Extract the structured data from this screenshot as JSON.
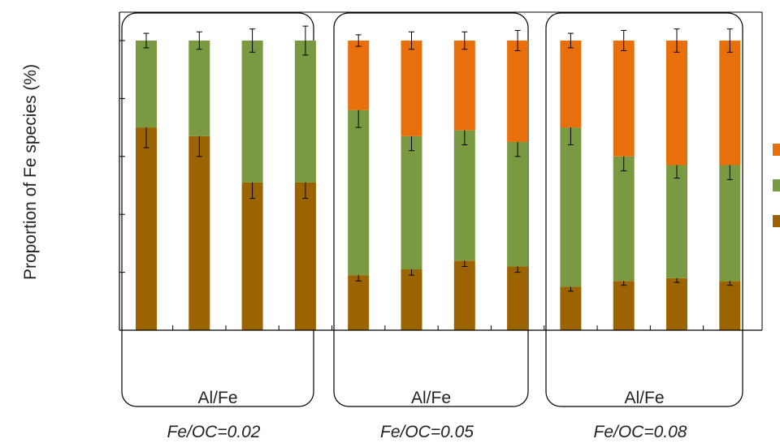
{
  "chart_data": {
    "type": "bar",
    "stacked": true,
    "ylabel": "Proportion of Fe species (%)",
    "ylim": [
      0,
      100
    ],
    "ytick_values": [
      0,
      20,
      40,
      60,
      80,
      100
    ],
    "grid": false,
    "legend_position": "right",
    "legend_label_text_visible": false,
    "series": [
      {
        "key": "bottom",
        "color": "#9b6400",
        "values": [
          70,
          67,
          51,
          51,
          19,
          21,
          24,
          22,
          15,
          17,
          18,
          17
        ],
        "errors": [
          7,
          7,
          5.5,
          5.5,
          2,
          2,
          2,
          2,
          1.5,
          1.5,
          1.5,
          1.5
        ]
      },
      {
        "key": "middle",
        "color": "#7a9a41",
        "values": [
          30,
          33,
          49,
          49,
          57,
          46,
          45,
          43,
          55,
          43,
          39,
          40
        ],
        "errors": [
          2.5,
          3,
          4,
          5,
          6,
          5,
          5,
          5,
          6,
          5,
          4.5,
          5
        ]
      },
      {
        "key": "top",
        "color": "#e8700c",
        "values": [
          0,
          0,
          0,
          0,
          24,
          33,
          31,
          35,
          30,
          40,
          43,
          43
        ],
        "errors": [
          0,
          0,
          0,
          0,
          2,
          3,
          3,
          3.5,
          2.5,
          3.5,
          4,
          4
        ]
      }
    ],
    "groups": [
      {
        "label": "Al/Fe",
        "sublabel": "Fe/OC=0.02",
        "bars": [
          0,
          1,
          2,
          3
        ]
      },
      {
        "label": "Al/Fe",
        "sublabel": "Fe/OC=0.05",
        "bars": [
          4,
          5,
          6,
          7
        ]
      },
      {
        "label": "Al/Fe",
        "sublabel": "Fe/OC=0.08",
        "bars": [
          8,
          9,
          10,
          11
        ]
      }
    ],
    "legend_order": [
      "top",
      "middle",
      "bottom"
    ]
  }
}
